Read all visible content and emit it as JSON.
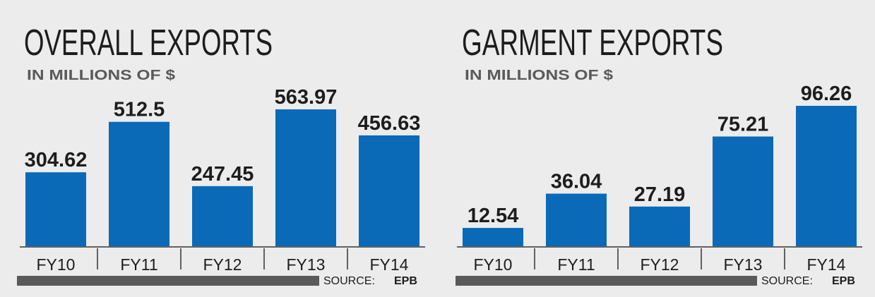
{
  "colors": {
    "bar": "#0a6ab8",
    "text": "#1d1d1d",
    "source_bar": "#5a5a5a",
    "axis": "#333333"
  },
  "source": {
    "prefix": "SOURCE:",
    "name": "EPB"
  },
  "chart_data": [
    {
      "type": "bar",
      "title": "OVERALL EXPORTS",
      "subtitle": "IN MILLIONS OF $",
      "categories": [
        "FY10",
        "FY11",
        "FY12",
        "FY13",
        "FY14"
      ],
      "values": [
        304.62,
        512.5,
        247.45,
        563.97,
        456.63
      ],
      "value_labels": [
        "304.62",
        "512.5",
        "247.45",
        "563.97",
        "456.63"
      ],
      "xlabel": "",
      "ylabel": "",
      "ylim": [
        0,
        563.97
      ],
      "grid": false,
      "legend": "none"
    },
    {
      "type": "bar",
      "title": "GARMENT EXPORTS",
      "subtitle": "IN MILLIONS OF $",
      "categories": [
        "FY10",
        "FY11",
        "FY12",
        "FY13",
        "FY14"
      ],
      "values": [
        12.54,
        36.04,
        27.19,
        75.21,
        96.26
      ],
      "value_labels": [
        "12.54",
        "36.04",
        "27.19",
        "75.21",
        "96.26"
      ],
      "xlabel": "",
      "ylabel": "",
      "ylim": [
        0,
        96.26
      ],
      "grid": false,
      "legend": "none"
    }
  ]
}
